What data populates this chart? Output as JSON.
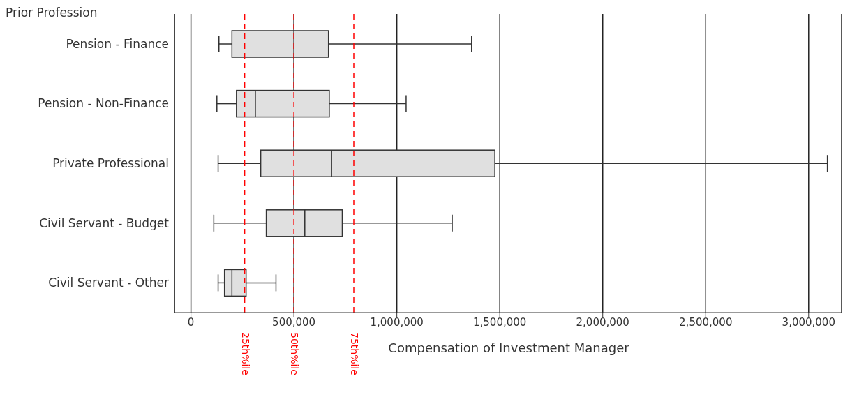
{
  "chart_data": {
    "type": "box",
    "orientation": "horizontal",
    "ylabel": "Prior Profession",
    "xlabel": "Compensation of Investment Manager",
    "categories": [
      "Pension - Finance",
      "Pension - Non-Finance",
      "Private Professional",
      "Civil Servant -  Budget",
      "Civil Servant - Other"
    ],
    "color": "#e0e0e0",
    "boxes": [
      {
        "low": 136000,
        "q1": 199000,
        "median": 500000,
        "q3": 668000,
        "high": 1363000
      },
      {
        "low": 126000,
        "q1": 221000,
        "median": 313000,
        "q3": 672000,
        "high": 1045000
      },
      {
        "low": 132000,
        "q1": 339000,
        "median": 683000,
        "q3": 1476000,
        "high": 3091000
      },
      {
        "low": 111000,
        "q1": 366000,
        "median": 553000,
        "q3": 735000,
        "high": 1269000
      },
      {
        "low": 132000,
        "q1": 163000,
        "median": 199000,
        "q3": 268000,
        "high": 413000
      }
    ],
    "xlim": [
      -80000,
      3160000
    ],
    "xticks": [
      {
        "value": 0,
        "label": "0"
      },
      {
        "value": 500000,
        "label": "500,000"
      },
      {
        "value": 1000000,
        "label": "1,000,000"
      },
      {
        "value": 1500000,
        "label": "1,500,000"
      },
      {
        "value": 2000000,
        "label": "2,000,000"
      },
      {
        "value": 2500000,
        "label": "2,500,000"
      },
      {
        "value": 3000000,
        "label": "3,000,000"
      }
    ],
    "ref_lines": [
      {
        "axis": "x",
        "value": 261000,
        "label": "25th%ile",
        "color": "#ff0000",
        "line_style": "dashed"
      },
      {
        "axis": "x",
        "value": 500000,
        "label": "50th%ile",
        "color": "#ff0000",
        "line_style": "dashed"
      },
      {
        "axis": "x",
        "value": 791000,
        "label": "75th%ile",
        "color": "#ff0000",
        "line_style": "dashed"
      }
    ],
    "grid": "x"
  }
}
